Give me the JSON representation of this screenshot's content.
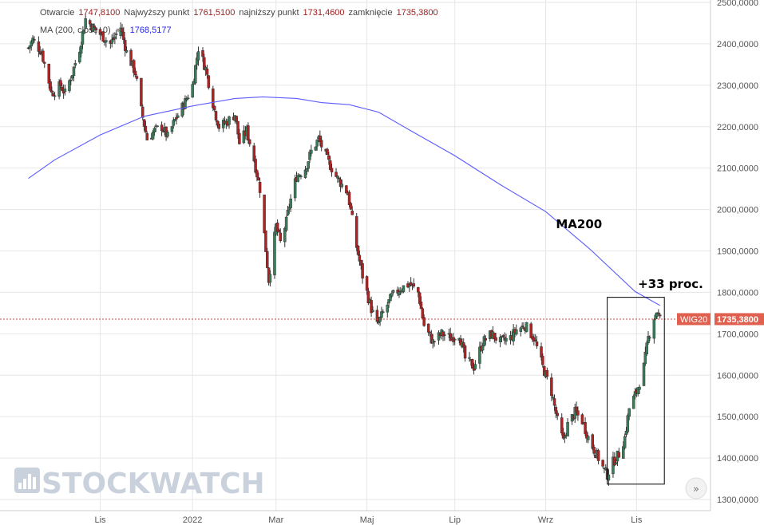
{
  "info": {
    "open_label": "Otwarcie",
    "open_value": "1747,8100",
    "high_label": "Najwyższy punkt",
    "high_value": "1761,5100",
    "low_label": "najniższy punkt",
    "low_value": "1731,4600",
    "close_label": "zamknięcie",
    "close_value": "1735,3800",
    "ma_label": "MA (200, close, 0)",
    "ma_value": "1768,5177"
  },
  "last_price": {
    "symbol": "WIG20",
    "value": "1735,3800",
    "num": 1735.38
  },
  "annotations": {
    "ma200": "MA200",
    "gain": "+33 proc."
  },
  "watermark": "STOCKWATCH",
  "colors": {
    "up": "#3a7d5a",
    "down": "#b22222",
    "ma": "#5b5bff",
    "price_line": "#d04030",
    "price_label": "#e06050"
  },
  "chart_data": {
    "type": "candlestick",
    "title": "",
    "xlabel": "",
    "ylabel": "",
    "ylim": [
      1280,
      2500
    ],
    "y_ticks": [
      1300,
      1400,
      1500,
      1600,
      1700,
      1800,
      1900,
      2000,
      2100,
      2200,
      2300,
      2400,
      2500
    ],
    "y_tick_labels": [
      "1300,0000",
      "1400,0000",
      "1500,0000",
      "1600,0000",
      "1700,0000",
      "1800,0000",
      "1900,0000",
      "2000,0000",
      "2100,0000",
      "2200,0000",
      "2300,0000",
      "2400,0000",
      "2500,0000"
    ],
    "x_range": [
      "2021-09-13",
      "2022-11-18"
    ],
    "x_ticks": [
      {
        "label": "Lis",
        "date": "2021-11-01"
      },
      {
        "label": "2022",
        "date": "2022-01-03"
      },
      {
        "label": "Mar",
        "date": "2022-03-01"
      },
      {
        "label": "Maj",
        "date": "2022-05-02"
      },
      {
        "label": "Lip",
        "date": "2022-07-01"
      },
      {
        "label": "Wrz",
        "date": "2022-09-01"
      },
      {
        "label": "Lis",
        "date": "2022-11-02"
      }
    ],
    "grid": true,
    "close_path": [
      [
        "2021-09-13",
        2390
      ],
      [
        "2021-09-16",
        2410
      ],
      [
        "2021-09-22",
        2380
      ],
      [
        "2021-09-29",
        2280
      ],
      [
        "2021-10-05",
        2300
      ],
      [
        "2021-10-08",
        2280
      ],
      [
        "2021-10-13",
        2330
      ],
      [
        "2021-10-18",
        2390
      ],
      [
        "2021-10-22",
        2460
      ],
      [
        "2021-10-27",
        2440
      ],
      [
        "2021-11-02",
        2420
      ],
      [
        "2021-11-08",
        2400
      ],
      [
        "2021-11-15",
        2440
      ],
      [
        "2021-11-19",
        2380
      ],
      [
        "2021-11-25",
        2330
      ],
      [
        "2021-11-29",
        2240
      ],
      [
        "2021-12-03",
        2170
      ],
      [
        "2021-12-08",
        2190
      ],
      [
        "2021-12-13",
        2200
      ],
      [
        "2021-12-17",
        2175
      ],
      [
        "2021-12-22",
        2215
      ],
      [
        "2021-12-29",
        2260
      ],
      [
        "2022-01-03",
        2300
      ],
      [
        "2022-01-07",
        2390
      ],
      [
        "2022-01-12",
        2340
      ],
      [
        "2022-01-18",
        2240
      ],
      [
        "2022-01-21",
        2200
      ],
      [
        "2022-01-26",
        2210
      ],
      [
        "2022-02-01",
        2230
      ],
      [
        "2022-02-04",
        2160
      ],
      [
        "2022-02-09",
        2190
      ],
      [
        "2022-02-14",
        2120
      ],
      [
        "2022-02-18",
        2050
      ],
      [
        "2022-02-24",
        1830
      ],
      [
        "2022-03-01",
        1960
      ],
      [
        "2022-03-04",
        1920
      ],
      [
        "2022-03-08",
        1970
      ],
      [
        "2022-03-10",
        2010
      ],
      [
        "2022-03-15",
        2080
      ],
      [
        "2022-03-21",
        2100
      ],
      [
        "2022-03-25",
        2140
      ],
      [
        "2022-03-30",
        2170
      ],
      [
        "2022-04-05",
        2120
      ],
      [
        "2022-04-11",
        2080
      ],
      [
        "2022-04-19",
        2040
      ],
      [
        "2022-04-25",
        1910
      ],
      [
        "2022-04-29",
        1840
      ],
      [
        "2022-05-05",
        1760
      ],
      [
        "2022-05-09",
        1720
      ],
      [
        "2022-05-13",
        1750
      ],
      [
        "2022-05-19",
        1790
      ],
      [
        "2022-05-25",
        1810
      ],
      [
        "2022-05-31",
        1820
      ],
      [
        "2022-06-06",
        1800
      ],
      [
        "2022-06-10",
        1720
      ],
      [
        "2022-06-16",
        1680
      ],
      [
        "2022-06-22",
        1700
      ],
      [
        "2022-06-28",
        1690
      ],
      [
        "2022-07-04",
        1700
      ],
      [
        "2022-07-08",
        1640
      ],
      [
        "2022-07-14",
        1620
      ],
      [
        "2022-07-20",
        1680
      ],
      [
        "2022-07-26",
        1700
      ],
      [
        "2022-08-01",
        1680
      ],
      [
        "2022-08-08",
        1690
      ],
      [
        "2022-08-12",
        1710
      ],
      [
        "2022-08-18",
        1720
      ],
      [
        "2022-08-24",
        1690
      ],
      [
        "2022-08-30",
        1620
      ],
      [
        "2022-09-05",
        1560
      ],
      [
        "2022-09-09",
        1490
      ],
      [
        "2022-09-13",
        1440
      ],
      [
        "2022-09-16",
        1480
      ],
      [
        "2022-09-21",
        1510
      ],
      [
        "2022-09-26",
        1490
      ],
      [
        "2022-09-30",
        1450
      ],
      [
        "2022-10-04",
        1420
      ],
      [
        "2022-10-07",
        1400
      ],
      [
        "2022-10-11",
        1370
      ],
      [
        "2022-10-13",
        1360
      ],
      [
        "2022-10-17",
        1390
      ],
      [
        "2022-10-21",
        1410
      ],
      [
        "2022-10-25",
        1450
      ],
      [
        "2022-10-28",
        1520
      ],
      [
        "2022-11-02",
        1560
      ],
      [
        "2022-11-07",
        1620
      ],
      [
        "2022-11-10",
        1690
      ],
      [
        "2022-11-14",
        1740
      ],
      [
        "2022-11-16",
        1755
      ],
      [
        "2022-11-18",
        1735
      ]
    ],
    "series": [
      {
        "name": "MA (200, close, 0)",
        "type": "line",
        "points": [
          [
            "2021-09-13",
            2075
          ],
          [
            "2021-10-01",
            2120
          ],
          [
            "2021-11-01",
            2180
          ],
          [
            "2021-12-01",
            2225
          ],
          [
            "2022-01-03",
            2250
          ],
          [
            "2022-02-01",
            2268
          ],
          [
            "2022-02-20",
            2272
          ],
          [
            "2022-03-15",
            2268
          ],
          [
            "2022-04-01",
            2258
          ],
          [
            "2022-04-20",
            2253
          ],
          [
            "2022-05-10",
            2235
          ],
          [
            "2022-06-01",
            2190
          ],
          [
            "2022-07-01",
            2130
          ],
          [
            "2022-08-01",
            2060
          ],
          [
            "2022-09-01",
            1995
          ],
          [
            "2022-10-01",
            1905
          ],
          [
            "2022-11-01",
            1802
          ],
          [
            "2022-11-18",
            1768.5
          ]
        ]
      }
    ],
    "annotations": [
      {
        "text": "MA200",
        "date": "2022-09-08",
        "value": 1955
      },
      {
        "text": "+33 proc.",
        "date": "2022-11-03",
        "value": 1810
      }
    ],
    "highlight_box": {
      "from_date": "2022-10-13",
      "to_date": "2022-11-21",
      "low": 1337,
      "high": 1788
    }
  }
}
